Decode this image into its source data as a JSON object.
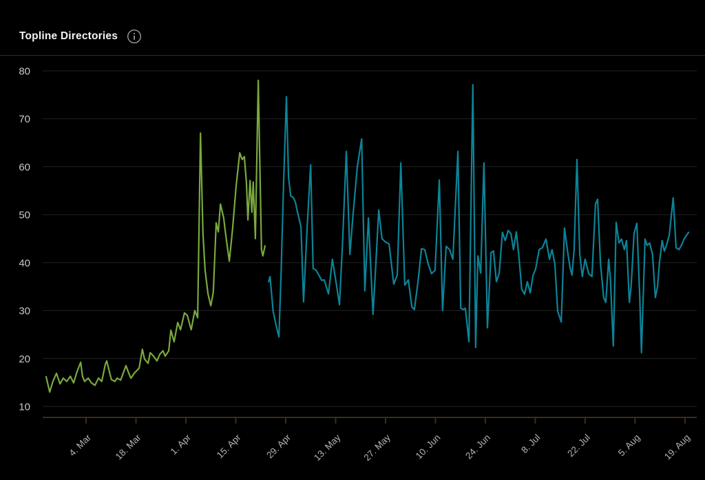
{
  "header": {
    "title": "Topline Directories"
  },
  "chart_data": {
    "type": "line",
    "title": "Topline Directories",
    "x_unit": "daily samples, day offset from first plotted point (late Feb) through 20 Aug",
    "grid": true,
    "legend": false,
    "ylim": [
      10,
      80
    ],
    "y_ticks": [
      80,
      70,
      60,
      50,
      40,
      30,
      20,
      10
    ],
    "x_ticks": [
      {
        "label": "4. Mar",
        "d": 11.2
      },
      {
        "label": "18. Mar",
        "d": 25.2
      },
      {
        "label": "1. Apr",
        "d": 39.2
      },
      {
        "label": "15. Apr",
        "d": 53.2
      },
      {
        "label": "29. Apr",
        "d": 67.2
      },
      {
        "label": "13. May",
        "d": 81.2
      },
      {
        "label": "27. May",
        "d": 95.2
      },
      {
        "label": "10. Jun",
        "d": 109.2
      },
      {
        "label": "24. Jun",
        "d": 123.2
      },
      {
        "label": "8. Jul",
        "d": 137.2
      },
      {
        "label": "22. Jul",
        "d": 151.2
      },
      {
        "label": "5. Aug",
        "d": 165.2
      },
      {
        "label": "19. Aug",
        "d": 179.2
      }
    ],
    "colors": {
      "series1": "#7aa93f",
      "series2": "#0c8498",
      "axis": "#382f1e",
      "grid": "#232323",
      "tick_label": "#b4b4b4",
      "y_label": "#c8c8c8",
      "title": "#f3f3f3",
      "divider": "#2d2d2d",
      "background": "#000000"
    },
    "series": [
      {
        "name": "series-1-green",
        "color_key": "series1",
        "points": [
          [
            0,
            16.2
          ],
          [
            1,
            13
          ],
          [
            1.9,
            15.2
          ],
          [
            2.9,
            16.9
          ],
          [
            3.9,
            14.7
          ],
          [
            4.8,
            15.9
          ],
          [
            5.8,
            15.2
          ],
          [
            6.8,
            16.3
          ],
          [
            7.7,
            14.9
          ],
          [
            8.7,
            17.3
          ],
          [
            9.7,
            19.2
          ],
          [
            10.2,
            16.3
          ],
          [
            10.8,
            15.2
          ],
          [
            11.8,
            15.9
          ],
          [
            12.7,
            14.9
          ],
          [
            13.7,
            14.4
          ],
          [
            14.7,
            15.9
          ],
          [
            15.6,
            15.2
          ],
          [
            16.6,
            18.8
          ],
          [
            17,
            19.5
          ],
          [
            17.6,
            17.7
          ],
          [
            18.3,
            15.6
          ],
          [
            19.3,
            15.2
          ],
          [
            19.9,
            15.9
          ],
          [
            20.9,
            15.5
          ],
          [
            21.8,
            17.3
          ],
          [
            22.4,
            18.5
          ],
          [
            23.2,
            16.9
          ],
          [
            23.8,
            15.9
          ],
          [
            24.7,
            16.9
          ],
          [
            26.1,
            18
          ],
          [
            27,
            21.9
          ],
          [
            27.6,
            19.9
          ],
          [
            28.6,
            19
          ],
          [
            29.2,
            21.2
          ],
          [
            30.1,
            20.5
          ],
          [
            31.1,
            19.5
          ],
          [
            31.9,
            20.9
          ],
          [
            32.8,
            21.6
          ],
          [
            33.4,
            20.5
          ],
          [
            34.4,
            21.6
          ],
          [
            35,
            25.9
          ],
          [
            35.9,
            23.5
          ],
          [
            36.9,
            27.5
          ],
          [
            37.7,
            26
          ],
          [
            38.8,
            29.5
          ],
          [
            39.6,
            29
          ],
          [
            40.7,
            26
          ],
          [
            41.7,
            30
          ],
          [
            42.5,
            28.5
          ],
          [
            43.3,
            67
          ],
          [
            44,
            46
          ],
          [
            44.6,
            38.4
          ],
          [
            45.4,
            33.5
          ],
          [
            46.2,
            31
          ],
          [
            46.9,
            33.8
          ],
          [
            47.7,
            48.3
          ],
          [
            48.3,
            46.4
          ],
          [
            48.9,
            52.2
          ],
          [
            49.8,
            49.3
          ],
          [
            50.4,
            45.6
          ],
          [
            51.4,
            40.3
          ],
          [
            52.3,
            47
          ],
          [
            53.3,
            56
          ],
          [
            54.3,
            62.9
          ],
          [
            55,
            61.5
          ],
          [
            55.6,
            62.1
          ],
          [
            56.2,
            56.5
          ],
          [
            56.6,
            48.9
          ],
          [
            57.2,
            57.1
          ],
          [
            57.7,
            50.5
          ],
          [
            58.1,
            56.8
          ],
          [
            58.7,
            45
          ],
          [
            59.5,
            78
          ],
          [
            60.4,
            42.7
          ],
          [
            60.8,
            41.4
          ],
          [
            61.4,
            43.5
          ]
        ]
      },
      {
        "name": "series-2-teal",
        "color_key": "series2",
        "points": [
          [
            62.4,
            36
          ],
          [
            62.8,
            37.1
          ],
          [
            63.7,
            29.8
          ],
          [
            64.5,
            26.9
          ],
          [
            65.3,
            24.5
          ],
          [
            65.9,
            37.4
          ],
          [
            66.6,
            56.5
          ],
          [
            67.4,
            74.6
          ],
          [
            68,
            57.9
          ],
          [
            68.6,
            53.9
          ],
          [
            69.3,
            53.6
          ],
          [
            69.9,
            52.7
          ],
          [
            70.5,
            50.6
          ],
          [
            71.5,
            47.4
          ],
          [
            72.2,
            31.8
          ],
          [
            73.2,
            47
          ],
          [
            74.2,
            60.4
          ],
          [
            74.9,
            38.8
          ],
          [
            75.7,
            38.4
          ],
          [
            76.5,
            37.4
          ],
          [
            77.3,
            36.3
          ],
          [
            78,
            36.4
          ],
          [
            79.2,
            33.5
          ],
          [
            80.3,
            40.7
          ],
          [
            81.3,
            36
          ],
          [
            82.3,
            31.2
          ],
          [
            83.2,
            45
          ],
          [
            84.2,
            63.2
          ],
          [
            85.2,
            41.7
          ],
          [
            86.1,
            50
          ],
          [
            87.3,
            60
          ],
          [
            88.5,
            65.8
          ],
          [
            89.4,
            34.1
          ],
          [
            90.4,
            49.3
          ],
          [
            91.7,
            29.2
          ],
          [
            92.5,
            40
          ],
          [
            93.3,
            51
          ],
          [
            94.2,
            45
          ],
          [
            95.2,
            44.3
          ],
          [
            96.2,
            43.9
          ],
          [
            97.5,
            35.5
          ],
          [
            98.5,
            37.4
          ],
          [
            99.5,
            60.8
          ],
          [
            100.6,
            35.3
          ],
          [
            101.6,
            36.4
          ],
          [
            102.6,
            30.7
          ],
          [
            103.3,
            30.2
          ],
          [
            104.3,
            36
          ],
          [
            105.3,
            42.9
          ],
          [
            106.2,
            42.7
          ],
          [
            107.2,
            39.6
          ],
          [
            108.1,
            37.7
          ],
          [
            109.1,
            38.4
          ],
          [
            110.3,
            57.2
          ],
          [
            111.2,
            30
          ],
          [
            112.2,
            43.4
          ],
          [
            113.2,
            42.7
          ],
          [
            114.1,
            40.7
          ],
          [
            115.5,
            63.2
          ],
          [
            116.3,
            30.5
          ],
          [
            117,
            30.2
          ],
          [
            117.6,
            30.5
          ],
          [
            118.6,
            23.5
          ],
          [
            119.7,
            77.1
          ],
          [
            120.5,
            22.3
          ],
          [
            121.1,
            41.4
          ],
          [
            121.9,
            37.8
          ],
          [
            122.8,
            60.8
          ],
          [
            123.8,
            26.4
          ],
          [
            124.8,
            42.1
          ],
          [
            125.5,
            42.4
          ],
          [
            126.3,
            36
          ],
          [
            127.1,
            37.8
          ],
          [
            128,
            46.3
          ],
          [
            128.8,
            44.6
          ],
          [
            129.6,
            46.7
          ],
          [
            130.4,
            46
          ],
          [
            131.1,
            42.7
          ],
          [
            131.9,
            46.4
          ],
          [
            132.7,
            40.7
          ],
          [
            133.4,
            34.5
          ],
          [
            134.2,
            33.4
          ],
          [
            135,
            36
          ],
          [
            135.8,
            33.7
          ],
          [
            136.6,
            37.4
          ],
          [
            137.3,
            38.6
          ],
          [
            138.3,
            42.7
          ],
          [
            139.2,
            43.1
          ],
          [
            140.2,
            44.9
          ],
          [
            141.2,
            40.7
          ],
          [
            141.9,
            42.7
          ],
          [
            142.7,
            39.8
          ],
          [
            143.5,
            29.9
          ],
          [
            144.5,
            27.6
          ],
          [
            145.4,
            47.2
          ],
          [
            146.2,
            42.7
          ],
          [
            147,
            38.8
          ],
          [
            147.5,
            37.4
          ],
          [
            148.1,
            42.7
          ],
          [
            148.9,
            61.5
          ],
          [
            149.7,
            41.7
          ],
          [
            150.4,
            37.1
          ],
          [
            151.2,
            40.7
          ],
          [
            152.2,
            37.7
          ],
          [
            153.1,
            37.1
          ],
          [
            154.1,
            52.2
          ],
          [
            154.7,
            53.2
          ],
          [
            155.5,
            39.8
          ],
          [
            156.4,
            32.7
          ],
          [
            157,
            31.7
          ],
          [
            157.8,
            40.7
          ],
          [
            158.3,
            36.4
          ],
          [
            159.1,
            22.6
          ],
          [
            159.9,
            48.4
          ],
          [
            160.7,
            44.1
          ],
          [
            161.4,
            44.9
          ],
          [
            162.2,
            42.7
          ],
          [
            162.8,
            44.6
          ],
          [
            163.6,
            31.7
          ],
          [
            164.1,
            35
          ],
          [
            164.9,
            46
          ],
          [
            165.7,
            48.2
          ],
          [
            166.5,
            33.4
          ],
          [
            167,
            21.2
          ],
          [
            168,
            44.9
          ],
          [
            168.6,
            43.6
          ],
          [
            169.3,
            44.1
          ],
          [
            170.1,
            41.7
          ],
          [
            170.9,
            32.7
          ],
          [
            171.5,
            35
          ],
          [
            172.1,
            40.3
          ],
          [
            172.8,
            44.6
          ],
          [
            173.4,
            42.4
          ],
          [
            174,
            43.6
          ],
          [
            174.8,
            45.7
          ],
          [
            175.9,
            53.5
          ],
          [
            176.7,
            43.1
          ],
          [
            177.5,
            42.7
          ],
          [
            178.2,
            43.6
          ],
          [
            179,
            45
          ],
          [
            180.2,
            46.3
          ]
        ]
      }
    ]
  }
}
